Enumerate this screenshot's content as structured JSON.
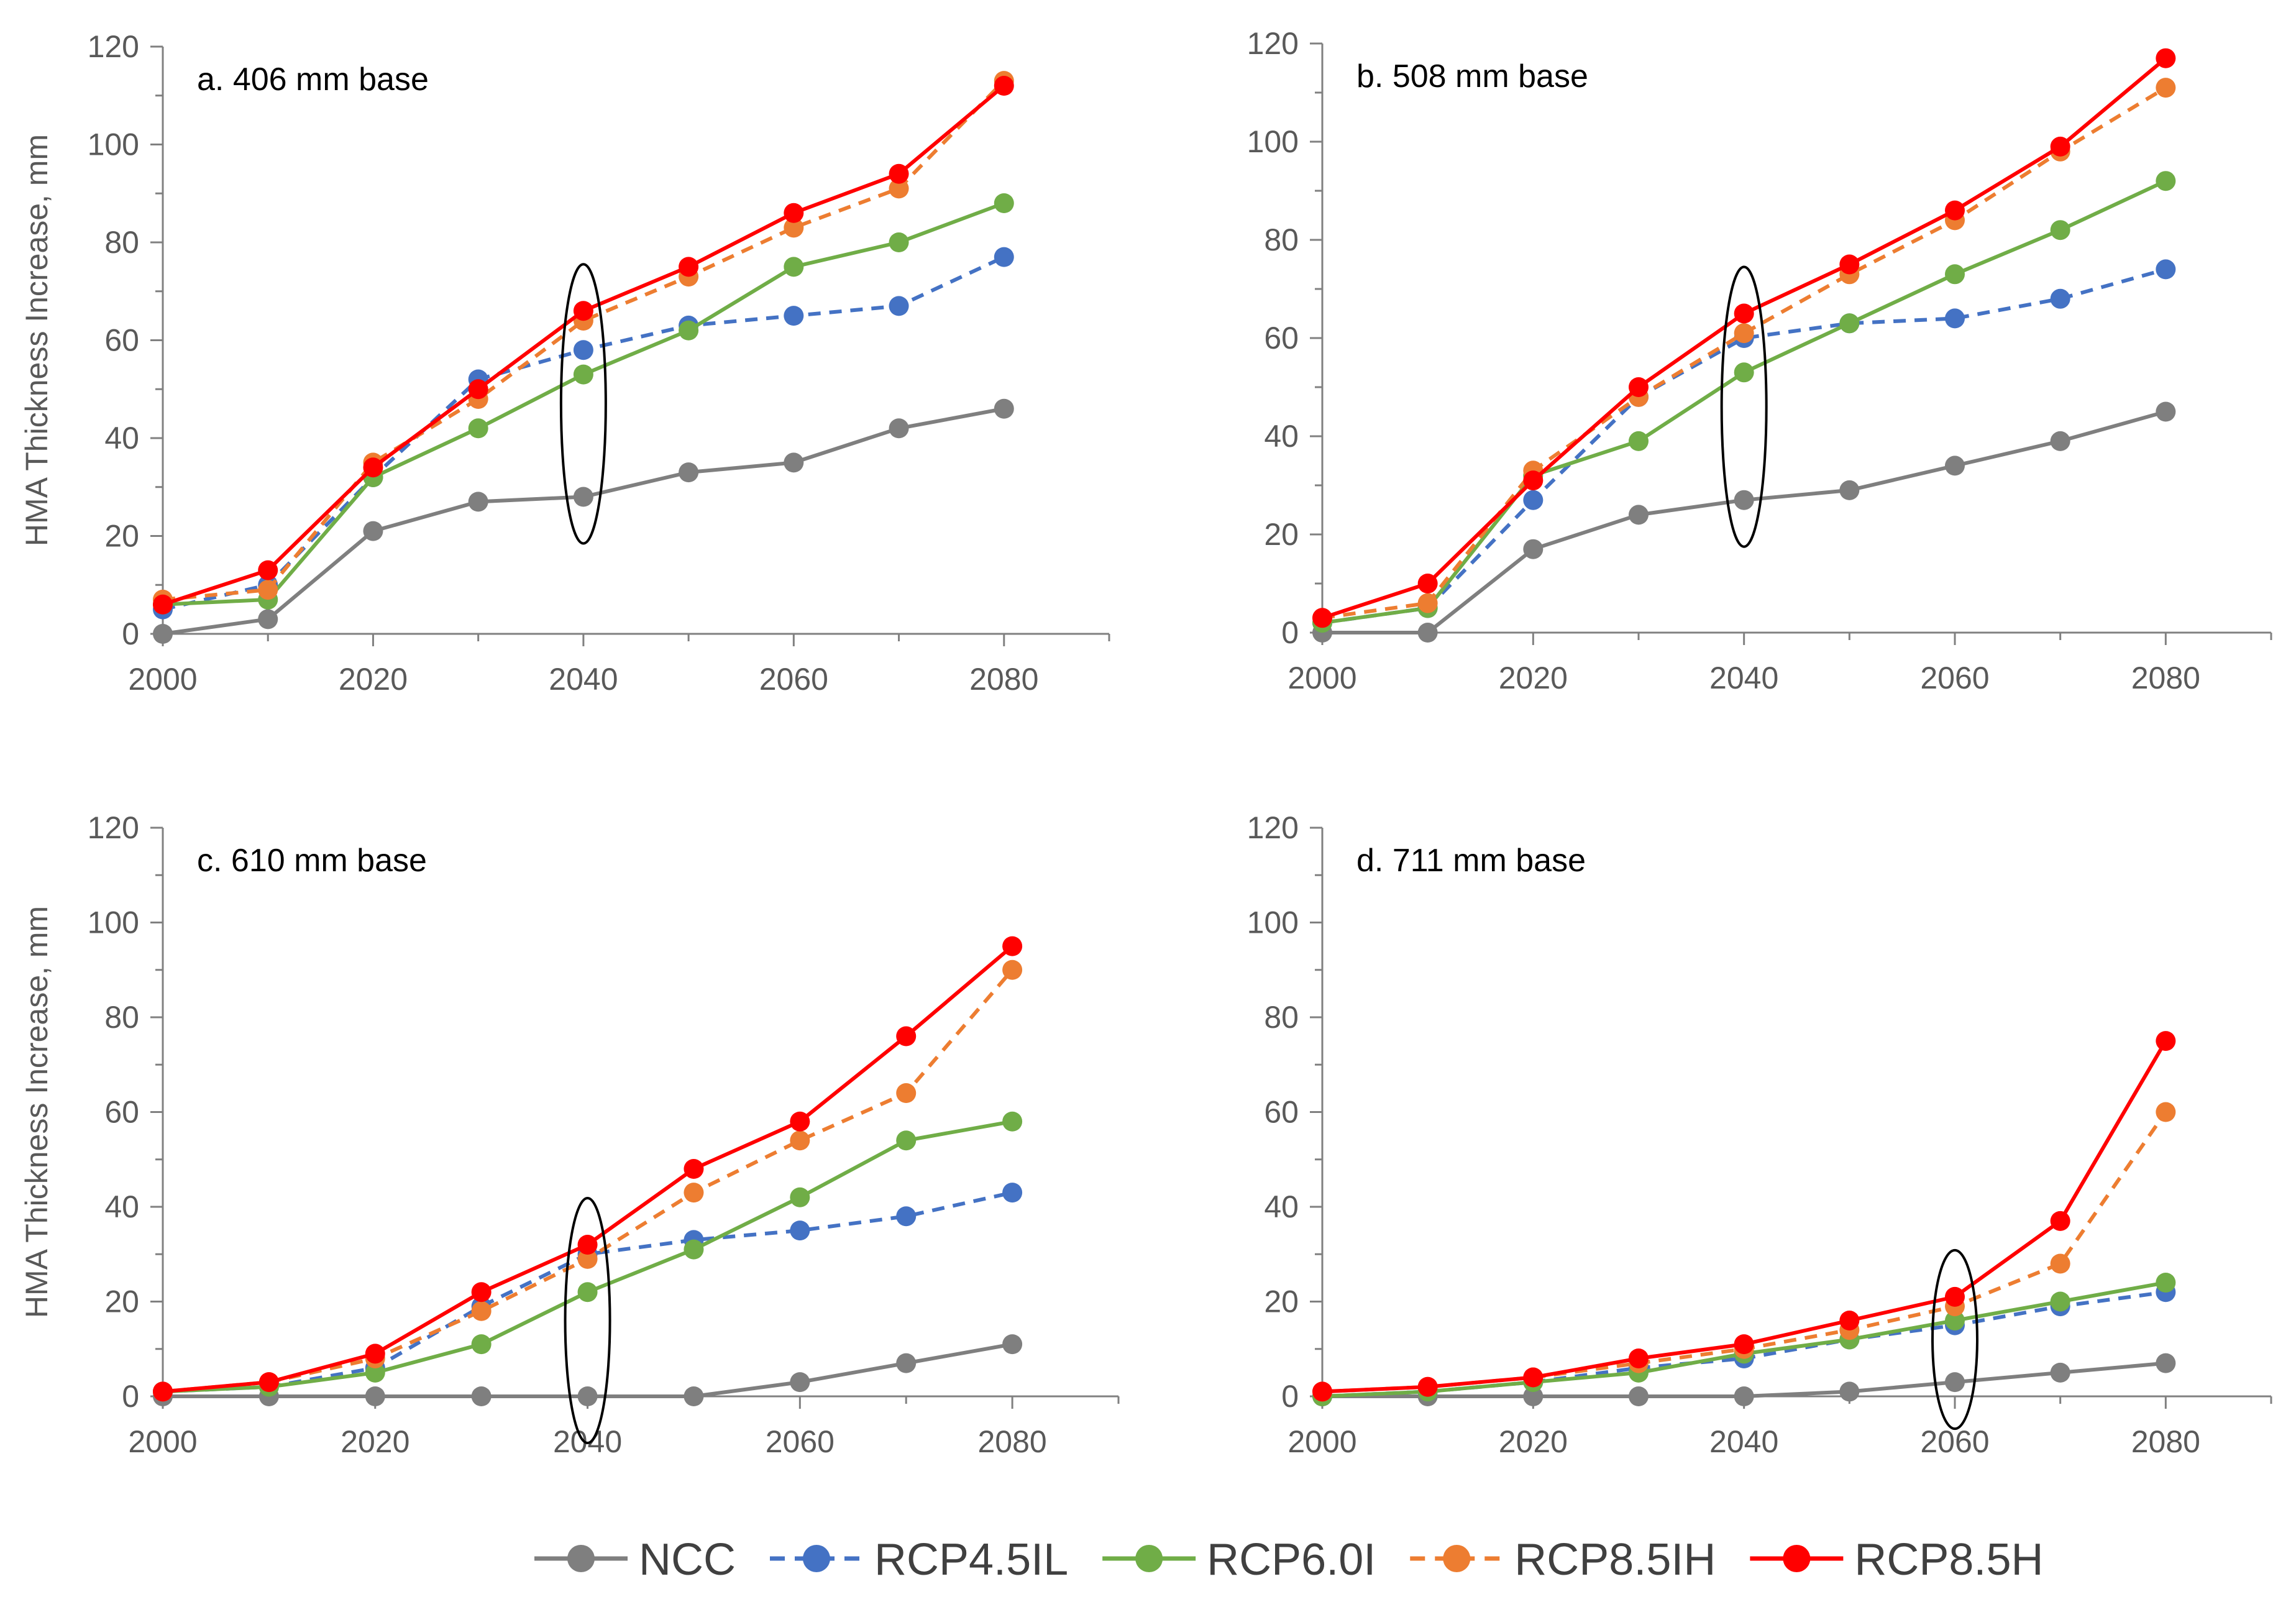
{
  "chart_data": [
    {
      "type": "line",
      "title": "a. 406 mm base",
      "xlabel": "",
      "ylabel": "HMA Thickness Increase, mm",
      "xlim": [
        2000,
        2090
      ],
      "ylim": [
        0,
        120
      ],
      "xticks": [
        2000,
        2020,
        2040,
        2060,
        2080
      ],
      "yticks": [
        0,
        20,
        40,
        60,
        80,
        100,
        120
      ],
      "x": [
        2000,
        2010,
        2020,
        2030,
        2040,
        2050,
        2060,
        2070,
        2080
      ],
      "highlight_x": 2040,
      "series": [
        {
          "name": "NCC",
          "values": [
            0,
            3,
            21,
            27,
            28,
            33,
            35,
            42,
            46
          ]
        },
        {
          "name": "RCP4.5IL",
          "values": [
            5,
            10,
            32,
            52,
            58,
            63,
            65,
            67,
            77
          ]
        },
        {
          "name": "RCP6.0I",
          "values": [
            6,
            7,
            32,
            42,
            53,
            62,
            75,
            80,
            88
          ]
        },
        {
          "name": "RCP8.5IH",
          "values": [
            7,
            9,
            35,
            48,
            64,
            73,
            83,
            91,
            113
          ]
        },
        {
          "name": "RCP8.5H",
          "values": [
            6,
            13,
            34,
            50,
            66,
            75,
            86,
            94,
            112
          ]
        }
      ]
    },
    {
      "type": "line",
      "title": "b. 508 mm base",
      "xlabel": "",
      "ylabel": "",
      "xlim": [
        2000,
        2090
      ],
      "ylim": [
        0,
        120
      ],
      "xticks": [
        2000,
        2020,
        2040,
        2060,
        2080
      ],
      "yticks": [
        0,
        20,
        40,
        60,
        80,
        100,
        120
      ],
      "x": [
        2000,
        2010,
        2020,
        2030,
        2040,
        2050,
        2060,
        2070,
        2080
      ],
      "highlight_x": 2040,
      "series": [
        {
          "name": "NCC",
          "values": [
            0,
            0,
            17,
            24,
            27,
            29,
            34,
            39,
            45
          ]
        },
        {
          "name": "RCP4.5IL",
          "values": [
            2,
            5,
            27,
            48,
            60,
            63,
            64,
            68,
            74
          ]
        },
        {
          "name": "RCP6.0I",
          "values": [
            2,
            5,
            32,
            39,
            53,
            63,
            73,
            82,
            92
          ]
        },
        {
          "name": "RCP8.5IH",
          "values": [
            3,
            6,
            33,
            48,
            61,
            73,
            84,
            98,
            111
          ]
        },
        {
          "name": "RCP8.5H",
          "values": [
            3,
            10,
            31,
            50,
            65,
            75,
            86,
            99,
            117
          ]
        }
      ]
    },
    {
      "type": "line",
      "title": "c. 610 mm base",
      "xlabel": "",
      "ylabel": "HMA Thickness Increase, mm",
      "xlim": [
        2000,
        2090
      ],
      "ylim": [
        0,
        120
      ],
      "xticks": [
        2000,
        2020,
        2040,
        2060,
        2080
      ],
      "yticks": [
        0,
        20,
        40,
        60,
        80,
        100,
        120
      ],
      "x": [
        2000,
        2010,
        2020,
        2030,
        2040,
        2050,
        2060,
        2070,
        2080
      ],
      "highlight_x": 2040,
      "series": [
        {
          "name": "NCC",
          "values": [
            0,
            0,
            0,
            0,
            0,
            0,
            3,
            7,
            11
          ]
        },
        {
          "name": "RCP4.5IL",
          "values": [
            1,
            2,
            6,
            19,
            30,
            33,
            35,
            38,
            43
          ]
        },
        {
          "name": "RCP6.0I",
          "values": [
            1,
            2,
            5,
            11,
            22,
            31,
            42,
            54,
            58
          ]
        },
        {
          "name": "RCP8.5IH",
          "values": [
            1,
            3,
            8,
            18,
            29,
            43,
            54,
            64,
            90
          ]
        },
        {
          "name": "RCP8.5H",
          "values": [
            1,
            3,
            9,
            22,
            32,
            48,
            58,
            76,
            95
          ]
        }
      ]
    },
    {
      "type": "line",
      "title": "d. 711 mm base",
      "xlabel": "",
      "ylabel": "",
      "xlim": [
        2000,
        2090
      ],
      "ylim": [
        0,
        120
      ],
      "xticks": [
        2000,
        2020,
        2040,
        2060,
        2080
      ],
      "yticks": [
        0,
        20,
        40,
        60,
        80,
        100,
        120
      ],
      "x": [
        2000,
        2010,
        2020,
        2030,
        2040,
        2050,
        2060,
        2070,
        2080
      ],
      "highlight_x": 2060,
      "series": [
        {
          "name": "NCC",
          "values": [
            0,
            0,
            0,
            0,
            0,
            1,
            3,
            5,
            7
          ]
        },
        {
          "name": "RCP4.5IL",
          "values": [
            0,
            1,
            3,
            6,
            8,
            12,
            15,
            19,
            22
          ]
        },
        {
          "name": "RCP6.0I",
          "values": [
            0,
            1,
            3,
            5,
            9,
            12,
            16,
            20,
            24
          ]
        },
        {
          "name": "RCP8.5IH",
          "values": [
            1,
            2,
            4,
            7,
            10,
            14,
            19,
            28,
            60
          ]
        },
        {
          "name": "RCP8.5H",
          "values": [
            1,
            2,
            4,
            8,
            11,
            16,
            21,
            37,
            75
          ]
        }
      ]
    }
  ],
  "legend": {
    "items": [
      {
        "name": "NCC",
        "color": "#7f7f7f",
        "dash": "solid"
      },
      {
        "name": "RCP4.5IL",
        "color": "#4472c4",
        "dash": "dashed"
      },
      {
        "name": "RCP6.0I",
        "color": "#70ad47",
        "dash": "solid"
      },
      {
        "name": "RCP8.5IH",
        "color": "#ed7d31",
        "dash": "dashed"
      },
      {
        "name": "RCP8.5H",
        "color": "#ff0000",
        "dash": "solid"
      }
    ]
  }
}
